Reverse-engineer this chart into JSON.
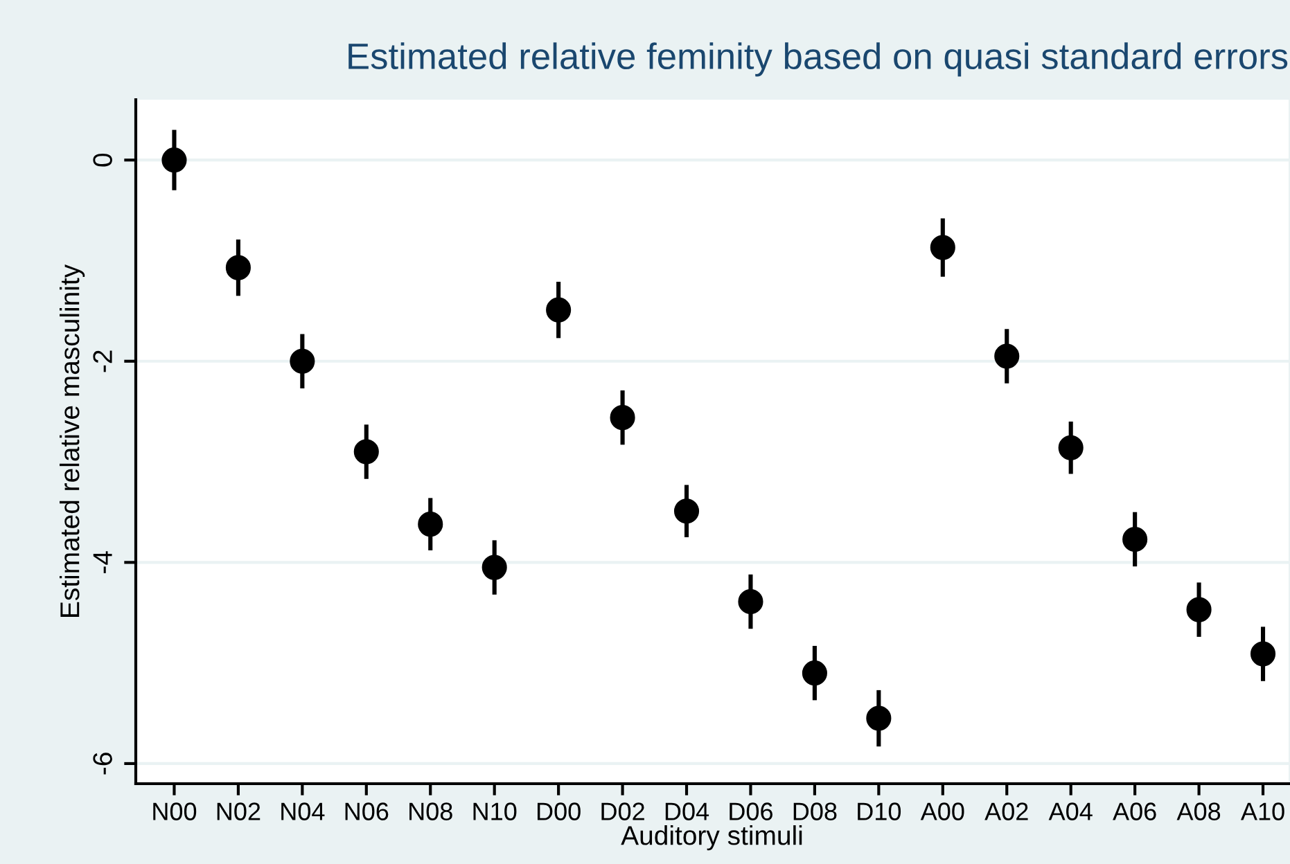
{
  "chart_data": {
    "type": "scatter",
    "title": "Estimated relative feminity based on quasi standard errors",
    "xlabel": "Auditory stimuli",
    "ylabel": "Estimated relative masculinity",
    "categories": [
      "N00",
      "N02",
      "N04",
      "N06",
      "N08",
      "N10",
      "D00",
      "D02",
      "D04",
      "D06",
      "D08",
      "D10",
      "A00",
      "A02",
      "A04",
      "A06",
      "A08",
      "A10"
    ],
    "series": [
      {
        "color": "#000000",
        "values": [
          0,
          -1.07,
          -2.0,
          -2.9,
          -3.62,
          -4.05,
          -1.49,
          -2.56,
          -3.49,
          -4.39,
          -5.1,
          -5.55,
          -0.87,
          -1.95,
          -2.86,
          -3.77,
          -4.47,
          -4.91
        ],
        "errors": [
          0.3,
          0.28,
          0.27,
          0.27,
          0.26,
          0.27,
          0.28,
          0.27,
          0.26,
          0.27,
          0.27,
          0.28,
          0.29,
          0.27,
          0.26,
          0.27,
          0.27,
          0.27
        ]
      }
    ],
    "ylim": [
      -6.2,
      0.6
    ],
    "yticks": [
      0,
      -2,
      -4,
      -6
    ],
    "grid": "y",
    "marker": "circle"
  }
}
